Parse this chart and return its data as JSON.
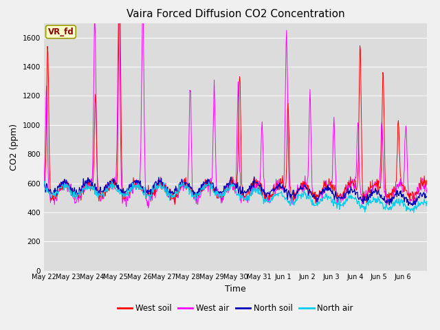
{
  "title": "Vaira Forced Diffusion CO2 Concentration",
  "xlabel": "Time",
  "ylabel": "CO2 (ppm)",
  "ylim": [
    0,
    1700
  ],
  "yticks": [
    0,
    200,
    400,
    600,
    800,
    1000,
    1200,
    1400,
    1600
  ],
  "legend_label": "VR_fd",
  "series_colors": {
    "west_soil": "#ff0000",
    "west_air": "#ff00ff",
    "north_soil": "#0000bb",
    "north_air": "#00ccee"
  },
  "x_tick_labels": [
    "May 22",
    "May 23",
    "May 24",
    "May 25",
    "May 26",
    "May 27",
    "May 28",
    "May 29",
    "May 30",
    "May 31",
    "Jun 1",
    "Jun 2",
    "Jun 3",
    "Jun 4",
    "Jun 5",
    "Jun 6"
  ],
  "n_days": 16,
  "plot_bg": "#dcdcdc",
  "fig_bg": "#f0f0f0",
  "title_fontsize": 11,
  "axis_label_fontsize": 9,
  "tick_fontsize": 7.5
}
